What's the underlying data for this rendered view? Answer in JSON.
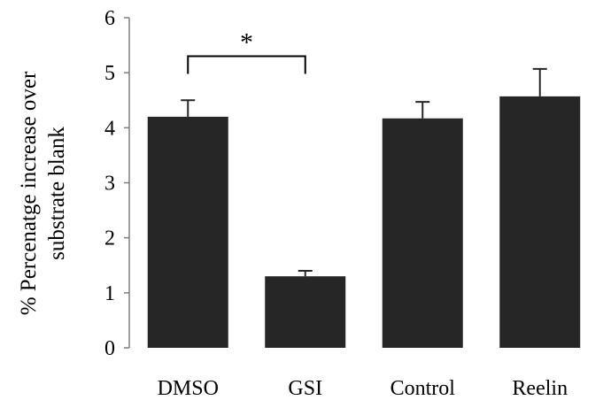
{
  "chart_data": {
    "type": "bar",
    "title": "",
    "ylabel": "% Percenatge increase over substrate blank",
    "ylabel_lines": [
      "% Percenatge increase over",
      "substrate blank"
    ],
    "xlabel": "",
    "categories": [
      "DMSO",
      "GSI",
      "Control",
      "Reelin"
    ],
    "values": [
      4.2,
      1.3,
      4.17,
      4.57
    ],
    "error_upper": [
      0.3,
      0.1,
      0.3,
      0.5
    ],
    "ylim": [
      0,
      6
    ],
    "yticks": [
      "0",
      "1",
      "2",
      "3",
      "4",
      "5",
      "6"
    ],
    "grid": false,
    "legend": "none",
    "bar_color": "#262626",
    "significance": {
      "from_category": "DMSO",
      "to_category": "GSI",
      "bracket_level": 5.3,
      "label": "*"
    }
  }
}
